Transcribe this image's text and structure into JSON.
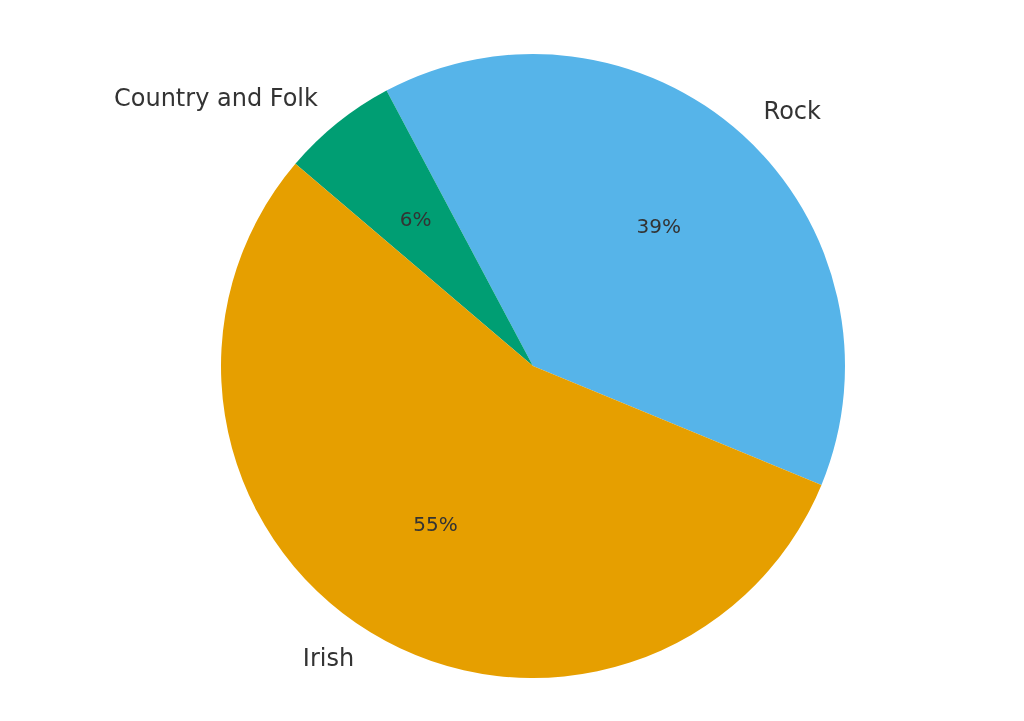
{
  "chart_data": {
    "type": "pie",
    "categories": [
      "Rock",
      "Country and Folk",
      "Irish"
    ],
    "values": [
      39,
      6,
      55
    ],
    "colors": [
      "#56b4e9",
      "#009e73",
      "#e69f00"
    ],
    "value_labels": [
      "39%",
      "6%",
      "55%"
    ]
  }
}
